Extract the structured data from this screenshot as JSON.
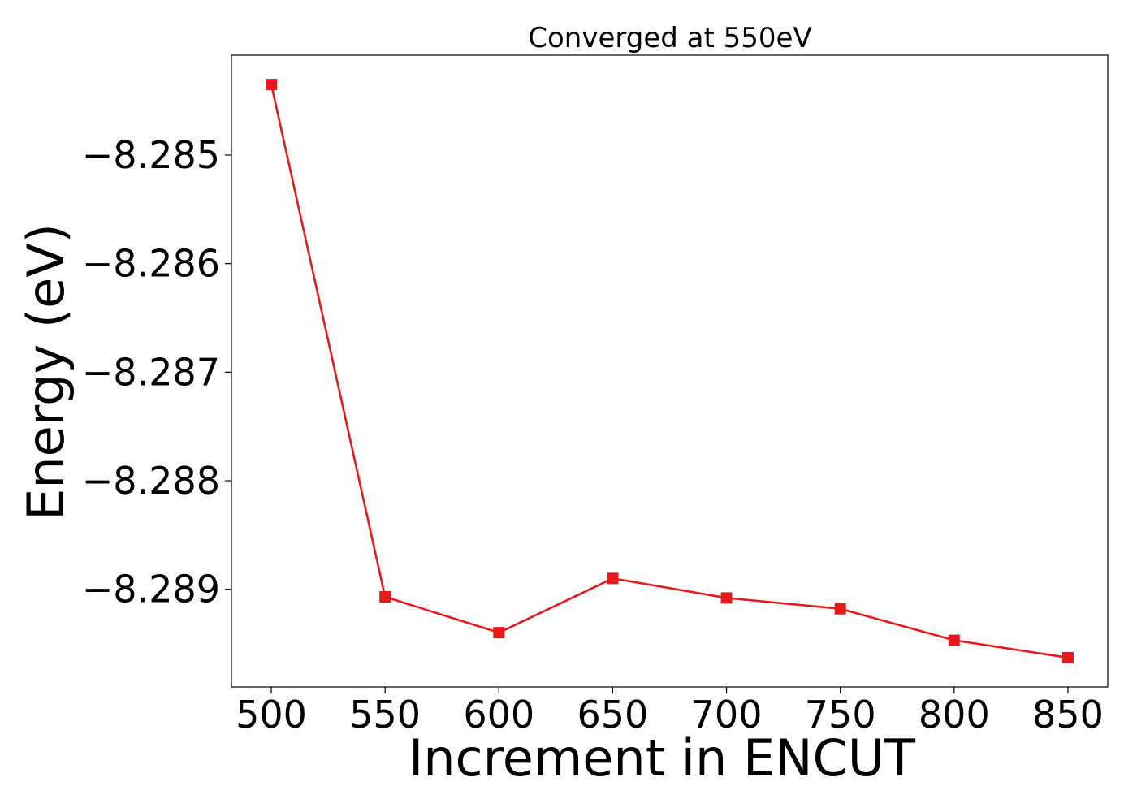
{
  "chart_data": {
    "type": "line",
    "title": "Converged at 550eV",
    "xlabel": "Increment in ENCUT",
    "ylabel": "Energy (eV)",
    "x": [
      500,
      550,
      600,
      650,
      700,
      750,
      800,
      850
    ],
    "series": [
      {
        "values": [
          -8.28435,
          -8.28907,
          -8.2894,
          -8.2889,
          -8.28908,
          -8.28918,
          -8.28947,
          -8.28963
        ],
        "color": "#e41a1c",
        "marker": "square"
      }
    ],
    "xticks": [
      500,
      550,
      600,
      650,
      700,
      750,
      800,
      850
    ],
    "xtick_labels": [
      "500",
      "550",
      "600",
      "650",
      "700",
      "750",
      "800",
      "850"
    ],
    "yticks": [
      -8.285,
      -8.286,
      -8.287,
      -8.288,
      -8.289
    ],
    "ytick_labels": [
      "−8.285",
      "−8.286",
      "−8.287",
      "−8.288",
      "−8.289"
    ],
    "xlim": [
      482.5,
      867.5
    ],
    "ylim": [
      -8.2899,
      -8.28408
    ],
    "grid": false,
    "legend": "none"
  }
}
